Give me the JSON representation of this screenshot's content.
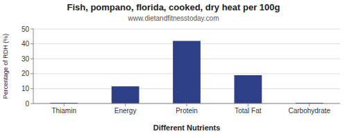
{
  "chart_data": {
    "type": "bar",
    "title": "Fish, pompano, florida, cooked, dry heat per 100g",
    "subtitle": "www.dietandfitnesstoday.com",
    "xlabel": "Different Nutrients",
    "ylabel": "Percentage of RDH (%)",
    "categories": [
      "Thiamin",
      "Energy",
      "Protein",
      "Total Fat",
      "Carbohydrate"
    ],
    "values": [
      0.5,
      11.5,
      42.0,
      19.0,
      0.5
    ],
    "color": "#2e3f87",
    "ylim": [
      0,
      50
    ],
    "yticks": [
      0,
      10,
      20,
      30,
      40,
      50
    ],
    "grid": true
  }
}
